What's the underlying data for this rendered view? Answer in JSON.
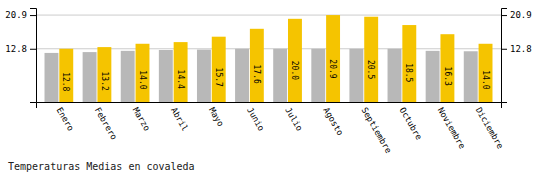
{
  "chart_data": {
    "type": "bar",
    "title": "Temperaturas Medias en covaleda",
    "categories": [
      "Enero",
      "Febrero",
      "Marzo",
      "Abril",
      "Mayo",
      "Junio",
      "Julio",
      "Agosto",
      "Septiembre",
      "Octubre",
      "Noviembre",
      "Diciembre"
    ],
    "series": [
      {
        "color": "#B8B8B8",
        "values": [
          11.8,
          12.0,
          12.3,
          12.5,
          12.6,
          12.8,
          12.8,
          12.8,
          12.8,
          12.8,
          12.3,
          12.2
        ]
      },
      {
        "color": "#F5C400",
        "values": [
          12.8,
          13.2,
          14.0,
          14.4,
          15.7,
          17.6,
          20.0,
          20.9,
          20.5,
          18.5,
          16.3,
          14.0
        ],
        "value_labels": [
          "12.8",
          "13.2",
          "14.0",
          "14.4",
          "15.7",
          "17.6",
          "20.0",
          "20.9",
          "20.5",
          "18.5",
          "16.3",
          "14.0"
        ],
        "data_labels": true
      }
    ],
    "ylim": [
      0,
      22.6
    ],
    "yticks": [
      12.8,
      20.9
    ],
    "grid": true
  }
}
